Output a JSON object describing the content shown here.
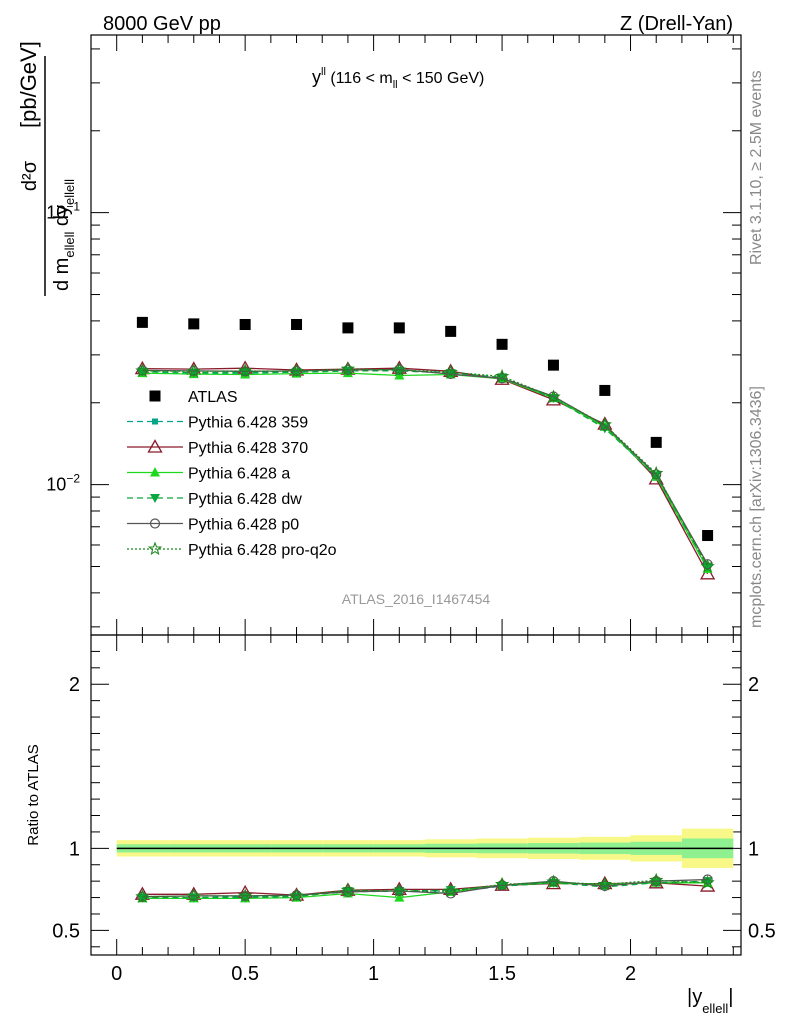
{
  "header": {
    "left": "8000 GeV pp",
    "right": "Z (Drell-Yan)"
  },
  "side_labels": {
    "rivet": "Rivet 3.1.10, ≥ 2.5M events",
    "mcplots": "mcplots.cern.ch [arXiv:1306.3436]"
  },
  "colors": {
    "atlas": "#000000",
    "p359": "#00a58a",
    "p370": "#8b1a2b",
    "pa": "#1ed81e",
    "pdw": "#0aa83c",
    "pp0": "#555555",
    "pq2o": "#1a8a1a",
    "band_outer": "#f8f889",
    "band_inner": "#8ef08e"
  },
  "chart_data": [
    {
      "type": "scatter",
      "panel": "main",
      "title_main": "y",
      "title_sup": "ll",
      "title_range_a": " (116 < m",
      "title_range_sub": "ll",
      "title_range_b": " < 150 GeV)",
      "ylabel_num": "d²σ",
      "ylabel_den": "d m",
      "ylabel_den_sub1": "ellell",
      "ylabel_den_mid": " dy",
      "ylabel_den_sub2": "ellell",
      "ylabel_unit": "[pb/GeV]",
      "yscale": "log",
      "ylim": [
        0.0028,
        0.45
      ],
      "xlim": [
        -0.1,
        2.43
      ],
      "ytick_labels": [
        {
          "value": 0.1,
          "base": "10",
          "exp": "−1"
        },
        {
          "value": 0.01,
          "base": "10",
          "exp": "−2"
        }
      ],
      "watermark": "ATLAS_2016_I1467454",
      "legend_position": "middle-left",
      "x": [
        0.1,
        0.3,
        0.5,
        0.7,
        0.9,
        1.1,
        1.3,
        1.5,
        1.7,
        1.9,
        2.1,
        2.3
      ],
      "series": [
        {
          "key": "atlas",
          "name": "ATLAS",
          "values": [
            0.0395,
            0.039,
            0.0388,
            0.0388,
            0.0377,
            0.0377,
            0.0366,
            0.0328,
            0.0275,
            0.0222,
            0.0143,
            0.0065
          ]
        },
        {
          "key": "p359",
          "name": "Pythia 6.428 359",
          "values": [
            0.0258,
            0.0256,
            0.0257,
            0.0259,
            0.0262,
            0.0263,
            0.0258,
            0.0247,
            0.0207,
            0.0164,
            0.0106,
            0.0049
          ]
        },
        {
          "key": "p370",
          "name": "Pythia 6.428 370",
          "values": [
            0.0267,
            0.0266,
            0.0268,
            0.0264,
            0.0266,
            0.0268,
            0.0261,
            0.0244,
            0.0205,
            0.0167,
            0.0105,
            0.0047
          ]
        },
        {
          "key": "pa",
          "name": "Pythia 6.428 a",
          "values": [
            0.0257,
            0.0255,
            0.0254,
            0.0256,
            0.0257,
            0.0252,
            0.0254,
            0.0245,
            0.0208,
            0.0163,
            0.0107,
            0.0049
          ]
        },
        {
          "key": "pdw",
          "name": "Pythia 6.428 dw",
          "values": [
            0.0261,
            0.0258,
            0.0259,
            0.0259,
            0.0262,
            0.0262,
            0.0257,
            0.0248,
            0.0208,
            0.0161,
            0.0108,
            0.005
          ]
        },
        {
          "key": "pp0",
          "name": "Pythia 6.428 p0",
          "values": [
            0.0263,
            0.0262,
            0.0261,
            0.0262,
            0.0264,
            0.0265,
            0.0255,
            0.0246,
            0.0211,
            0.0165,
            0.0109,
            0.0051
          ]
        },
        {
          "key": "pq2o",
          "name": "Pythia 6.428 pro-q2o",
          "values": [
            0.0262,
            0.0261,
            0.0262,
            0.0261,
            0.0266,
            0.0264,
            0.0259,
            0.025,
            0.021,
            0.0166,
            0.011,
            0.005
          ]
        }
      ]
    },
    {
      "type": "line",
      "panel": "ratio",
      "ylabel": "Ratio to ATLAS",
      "xlabel_main": "|y",
      "xlabel_sub": "ellell",
      "xlabel_end": "|",
      "ylim": [
        0.35,
        2.3
      ],
      "xlim": [
        -0.1,
        2.43
      ],
      "yticks": [
        0.5,
        1,
        2
      ],
      "ytick_labels": [
        "0.5",
        "1",
        "2"
      ],
      "xticks": [
        0,
        0.5,
        1,
        1.5,
        2
      ],
      "xtick_labels": [
        "0",
        "0.5",
        "1",
        "1.5",
        "2"
      ],
      "x": [
        0.1,
        0.3,
        0.5,
        0.7,
        0.9,
        1.1,
        1.3,
        1.5,
        1.7,
        1.9,
        2.1,
        2.3
      ],
      "band_inner_halfwidth": [
        0.025,
        0.025,
        0.025,
        0.025,
        0.025,
        0.025,
        0.028,
        0.03,
        0.032,
        0.035,
        0.04,
        0.06
      ],
      "band_outer_halfwidth": [
        0.05,
        0.05,
        0.05,
        0.05,
        0.05,
        0.05,
        0.055,
        0.06,
        0.065,
        0.07,
        0.08,
        0.12
      ],
      "series": [
        {
          "key": "p359",
          "name": "Pythia 6.428 359",
          "values": [
            0.7,
            0.7,
            0.705,
            0.71,
            0.735,
            0.74,
            0.73,
            0.77,
            0.79,
            0.775,
            0.79,
            0.79
          ]
        },
        {
          "key": "p370",
          "name": "Pythia 6.428 370",
          "values": [
            0.72,
            0.72,
            0.73,
            0.715,
            0.745,
            0.75,
            0.75,
            0.775,
            0.785,
            0.785,
            0.79,
            0.77
          ]
        },
        {
          "key": "pa",
          "name": "Pythia 6.428 a",
          "values": [
            0.695,
            0.695,
            0.695,
            0.7,
            0.725,
            0.7,
            0.735,
            0.775,
            0.79,
            0.78,
            0.79,
            0.79
          ]
        },
        {
          "key": "pdw",
          "name": "Pythia 6.428 dw",
          "values": [
            0.7,
            0.7,
            0.7,
            0.705,
            0.74,
            0.74,
            0.745,
            0.77,
            0.79,
            0.765,
            0.79,
            0.8
          ]
        },
        {
          "key": "pp0",
          "name": "Pythia 6.428 p0",
          "values": [
            0.705,
            0.71,
            0.71,
            0.715,
            0.735,
            0.74,
            0.725,
            0.775,
            0.8,
            0.77,
            0.8,
            0.81
          ]
        },
        {
          "key": "pq2o",
          "name": "Pythia 6.428 pro-q2o",
          "values": [
            0.705,
            0.71,
            0.71,
            0.71,
            0.745,
            0.74,
            0.74,
            0.78,
            0.795,
            0.78,
            0.805,
            0.79
          ]
        }
      ]
    }
  ]
}
